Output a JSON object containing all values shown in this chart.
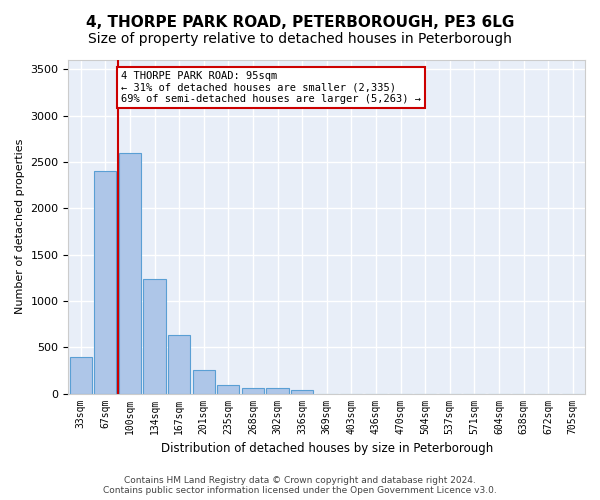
{
  "title": "4, THORPE PARK ROAD, PETERBOROUGH, PE3 6LG",
  "subtitle": "Size of property relative to detached houses in Peterborough",
  "xlabel": "Distribution of detached houses by size in Peterborough",
  "ylabel": "Number of detached properties",
  "footer_line1": "Contains HM Land Registry data © Crown copyright and database right 2024.",
  "footer_line2": "Contains public sector information licensed under the Open Government Licence v3.0.",
  "bin_labels": [
    "33sqm",
    "67sqm",
    "100sqm",
    "134sqm",
    "167sqm",
    "201sqm",
    "235sqm",
    "268sqm",
    "302sqm",
    "336sqm",
    "369sqm",
    "403sqm",
    "436sqm",
    "470sqm",
    "504sqm",
    "537sqm",
    "571sqm",
    "604sqm",
    "638sqm",
    "672sqm",
    "705sqm"
  ],
  "bar_values": [
    390,
    2400,
    2600,
    1240,
    635,
    255,
    90,
    60,
    60,
    40,
    0,
    0,
    0,
    0,
    0,
    0,
    0,
    0,
    0,
    0,
    0
  ],
  "bar_color": "#aec6e8",
  "bar_edge_color": "#5a9fd4",
  "vline_pos": 1.5,
  "vline_color": "#cc0000",
  "annotation_text": "4 THORPE PARK ROAD: 95sqm\n← 31% of detached houses are smaller (2,335)\n69% of semi-detached houses are larger (5,263) →",
  "annotation_box_color": "#ffffff",
  "annotation_box_edge_color": "#cc0000",
  "ylim": [
    0,
    3600
  ],
  "yticks": [
    0,
    500,
    1000,
    1500,
    2000,
    2500,
    3000,
    3500
  ],
  "background_color": "#e8eef8",
  "grid_color": "#ffffff",
  "title_fontsize": 11,
  "subtitle_fontsize": 10
}
